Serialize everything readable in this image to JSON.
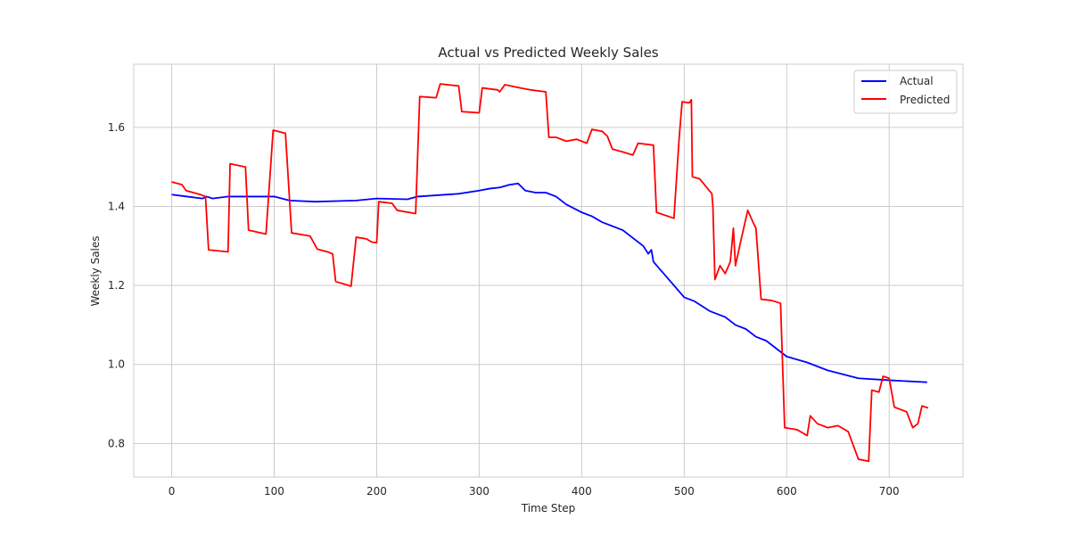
{
  "chart_data": {
    "type": "line",
    "title": "Actual vs Predicted Weekly Sales",
    "xlabel": "Time Step",
    "ylabel": "Weekly Sales",
    "xlim": [
      -37,
      772
    ],
    "ylim": [
      0.715,
      1.76
    ],
    "xticks": [
      0,
      100,
      200,
      300,
      400,
      500,
      600,
      700
    ],
    "yticks": [
      0.8,
      1.0,
      1.2,
      1.4,
      1.6
    ],
    "xtick_labels": [
      "0",
      "100",
      "200",
      "300",
      "400",
      "500",
      "600",
      "700"
    ],
    "ytick_labels": [
      "0.8",
      "1.0",
      "1.2",
      "1.4",
      "1.6"
    ],
    "grid": true,
    "legend_position": "top-right",
    "colors": {
      "Actual": "#0000ff",
      "Predicted": "#ff0000",
      "grid": "#cccccc",
      "frame": "#cccccc"
    },
    "series": [
      {
        "name": "Actual",
        "points": [
          [
            0,
            1.43
          ],
          [
            15,
            1.425
          ],
          [
            30,
            1.42
          ],
          [
            34,
            1.425
          ],
          [
            40,
            1.42
          ],
          [
            55,
            1.425
          ],
          [
            100,
            1.425
          ],
          [
            115,
            1.415
          ],
          [
            140,
            1.412
          ],
          [
            180,
            1.415
          ],
          [
            200,
            1.42
          ],
          [
            230,
            1.418
          ],
          [
            240,
            1.425
          ],
          [
            280,
            1.432
          ],
          [
            300,
            1.44
          ],
          [
            310,
            1.445
          ],
          [
            320,
            1.448
          ],
          [
            330,
            1.455
          ],
          [
            338,
            1.458
          ],
          [
            345,
            1.44
          ],
          [
            355,
            1.435
          ],
          [
            365,
            1.435
          ],
          [
            375,
            1.425
          ],
          [
            385,
            1.405
          ],
          [
            400,
            1.385
          ],
          [
            410,
            1.375
          ],
          [
            420,
            1.36
          ],
          [
            440,
            1.34
          ],
          [
            450,
            1.32
          ],
          [
            460,
            1.3
          ],
          [
            465,
            1.28
          ],
          [
            468,
            1.29
          ],
          [
            470,
            1.26
          ],
          [
            480,
            1.23
          ],
          [
            500,
            1.17
          ],
          [
            510,
            1.16
          ],
          [
            525,
            1.135
          ],
          [
            540,
            1.12
          ],
          [
            550,
            1.1
          ],
          [
            560,
            1.09
          ],
          [
            570,
            1.07
          ],
          [
            580,
            1.06
          ],
          [
            590,
            1.04
          ],
          [
            600,
            1.02
          ],
          [
            620,
            1.005
          ],
          [
            640,
            0.985
          ],
          [
            670,
            0.965
          ],
          [
            700,
            0.96
          ],
          [
            730,
            0.956
          ],
          [
            737,
            0.955
          ]
        ]
      },
      {
        "name": "Predicted",
        "points": [
          [
            0,
            1.462
          ],
          [
            10,
            1.455
          ],
          [
            14,
            1.44
          ],
          [
            28,
            1.43
          ],
          [
            33,
            1.425
          ],
          [
            36,
            1.29
          ],
          [
            55,
            1.285
          ],
          [
            57,
            1.508
          ],
          [
            72,
            1.5
          ],
          [
            75,
            1.34
          ],
          [
            92,
            1.33
          ],
          [
            99,
            1.593
          ],
          [
            111,
            1.585
          ],
          [
            117,
            1.333
          ],
          [
            135,
            1.325
          ],
          [
            142,
            1.292
          ],
          [
            152,
            1.285
          ],
          [
            157,
            1.28
          ],
          [
            160,
            1.21
          ],
          [
            175,
            1.198
          ],
          [
            180,
            1.322
          ],
          [
            190,
            1.318
          ],
          [
            195,
            1.31
          ],
          [
            200,
            1.308
          ],
          [
            202,
            1.412
          ],
          [
            215,
            1.408
          ],
          [
            220,
            1.39
          ],
          [
            238,
            1.382
          ],
          [
            242,
            1.678
          ],
          [
            258,
            1.675
          ],
          [
            262,
            1.71
          ],
          [
            280,
            1.705
          ],
          [
            283,
            1.64
          ],
          [
            300,
            1.637
          ],
          [
            303,
            1.7
          ],
          [
            318,
            1.695
          ],
          [
            320,
            1.69
          ],
          [
            325,
            1.708
          ],
          [
            340,
            1.7
          ],
          [
            350,
            1.695
          ],
          [
            365,
            1.69
          ],
          [
            368,
            1.575
          ],
          [
            375,
            1.575
          ],
          [
            385,
            1.565
          ],
          [
            395,
            1.57
          ],
          [
            400,
            1.565
          ],
          [
            405,
            1.56
          ],
          [
            410,
            1.595
          ],
          [
            420,
            1.59
          ],
          [
            425,
            1.578
          ],
          [
            430,
            1.545
          ],
          [
            440,
            1.538
          ],
          [
            450,
            1.53
          ],
          [
            455,
            1.56
          ],
          [
            470,
            1.555
          ],
          [
            473,
            1.385
          ],
          [
            490,
            1.37
          ],
          [
            495,
            1.57
          ],
          [
            498,
            1.665
          ],
          [
            505,
            1.662
          ],
          [
            507,
            1.67
          ],
          [
            508,
            1.475
          ],
          [
            515,
            1.47
          ],
          [
            527,
            1.432
          ],
          [
            528,
            1.4
          ],
          [
            530,
            1.215
          ],
          [
            535,
            1.25
          ],
          [
            540,
            1.23
          ],
          [
            545,
            1.26
          ],
          [
            548,
            1.345
          ],
          [
            550,
            1.25
          ],
          [
            555,
            1.31
          ],
          [
            562,
            1.39
          ],
          [
            568,
            1.355
          ],
          [
            570,
            1.345
          ],
          [
            575,
            1.165
          ],
          [
            585,
            1.162
          ],
          [
            594,
            1.155
          ],
          [
            598,
            0.84
          ],
          [
            610,
            0.835
          ],
          [
            620,
            0.82
          ],
          [
            623,
            0.87
          ],
          [
            630,
            0.85
          ],
          [
            640,
            0.84
          ],
          [
            650,
            0.845
          ],
          [
            660,
            0.83
          ],
          [
            670,
            0.76
          ],
          [
            680,
            0.755
          ],
          [
            683,
            0.935
          ],
          [
            690,
            0.93
          ],
          [
            694,
            0.97
          ],
          [
            700,
            0.965
          ],
          [
            705,
            0.892
          ],
          [
            717,
            0.88
          ],
          [
            723,
            0.84
          ],
          [
            728,
            0.85
          ],
          [
            732,
            0.895
          ],
          [
            738,
            0.89
          ]
        ]
      }
    ]
  }
}
